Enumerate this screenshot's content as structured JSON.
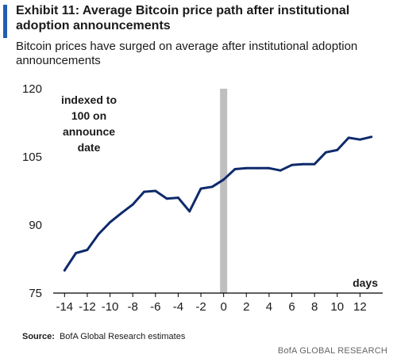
{
  "header": {
    "title": "Exhibit 11: Average Bitcoin price path after institutional adoption announcements",
    "subtitle": "Bitcoin prices have surged on average after institutional adoption announcements"
  },
  "chart_data": {
    "type": "line",
    "title": "Exhibit 11: Average Bitcoin price path after institutional adoption announcements",
    "subtitle": "Bitcoin prices have surged on average after institutional adoption announcements",
    "xlabel": "days",
    "ylabel": "",
    "xlim": [
      -15,
      14
    ],
    "ylim": [
      75,
      120
    ],
    "yticks": [
      75,
      90,
      105,
      120
    ],
    "xticks": [
      -14,
      -12,
      -10,
      -8,
      -6,
      -4,
      -2,
      0,
      2,
      4,
      6,
      8,
      10,
      12
    ],
    "grid": false,
    "legend": "none",
    "annotation": "indexed to 100 on announce date",
    "event_marker": {
      "x": 0
    },
    "series": [
      {
        "color": "#0f2a6b",
        "x": [
          -14,
          -13,
          -12,
          -11,
          -10,
          -9,
          -8,
          -7,
          -6,
          -5,
          -4,
          -3,
          -2,
          -1,
          0,
          1,
          2,
          3,
          4,
          5,
          6,
          7,
          8,
          9,
          10,
          11,
          12,
          13
        ],
        "values": [
          80,
          83.8,
          84.5,
          88,
          90.6,
          92.6,
          94.5,
          97.3,
          97.5,
          95.8,
          96,
          93,
          98,
          98.4,
          100,
          102.3,
          102.5,
          102.5,
          102.5,
          102,
          103.2,
          103.4,
          103.4,
          106,
          106.5,
          109.2,
          108.8,
          109.4
        ]
      }
    ]
  },
  "footer": {
    "source_label": "Source:",
    "source_text": "BofA Global Research estimates",
    "brand": "BofA GLOBAL RESEARCH"
  },
  "colors": {
    "line": "#0f2a6b",
    "accent": "#1f5fb0",
    "event_bar": "#bfbfbf",
    "axis": "#000000"
  }
}
